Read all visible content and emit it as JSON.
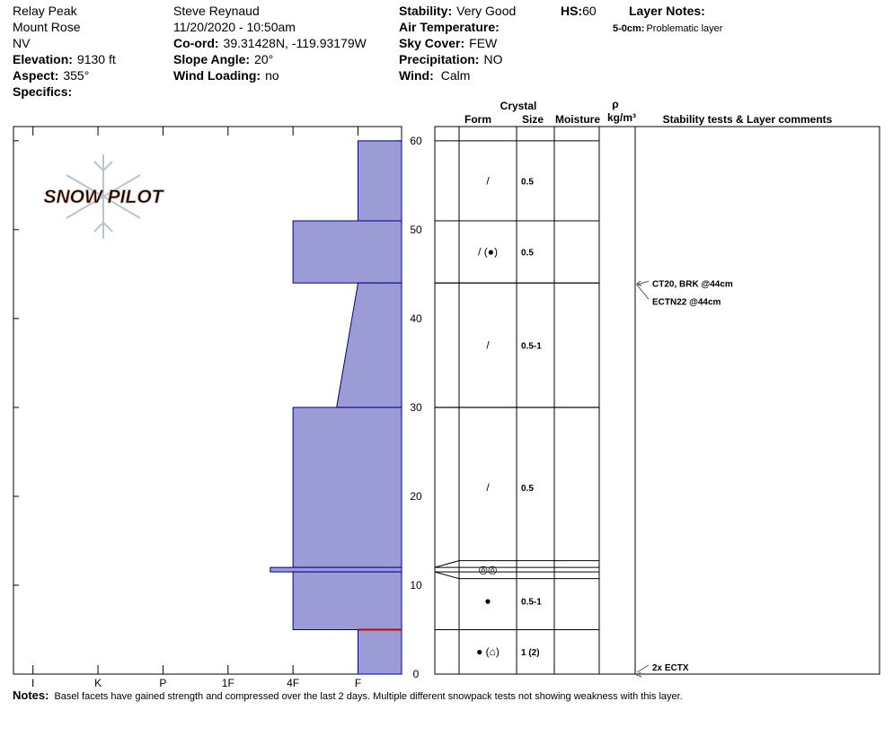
{
  "header": {
    "location": [
      "Relay Peak",
      "Mount Rose",
      "NV"
    ],
    "observer": "Steve Reynaud",
    "datetime": "11/20/2020 - 10:50am",
    "elevation": {
      "label": "Elevation:",
      "value": "9130 ft"
    },
    "aspect": {
      "label": "Aspect:",
      "value": "355°"
    },
    "specifics": {
      "label": "Specifics:"
    },
    "coord": {
      "label": "Co-ord:",
      "value": "39.31428N, -119.93179W"
    },
    "slope_angle": {
      "label": "Slope Angle:",
      "value": "20°"
    },
    "wind_loading": {
      "label": "Wind Loading:",
      "value": "no"
    },
    "stability": {
      "label": "Stability:",
      "value": "Very Good"
    },
    "air_temperature": {
      "label": "Air Temperature:"
    },
    "sky_cover": {
      "label": "Sky Cover:",
      "value": "FEW"
    },
    "precipitation": {
      "label": "Precipitation:",
      "value": "NO"
    },
    "wind": {
      "label": "Wind:",
      "value": "Calm"
    },
    "hs": {
      "label": "HS:",
      "value": 60
    },
    "layer_notes": {
      "title": "Layer Notes:",
      "items": [
        {
          "label": "5-0cm:",
          "text": "Problematic layer"
        }
      ]
    }
  },
  "logo": "SNOW PILOT",
  "chart_data": {
    "type": "snow_profile",
    "ylim": [
      0,
      61.6
    ],
    "yticks": [
      0,
      10,
      20,
      30,
      40,
      50,
      60
    ],
    "xlim": [
      -0.3,
      5.67
    ],
    "xticks": [
      {
        "value": 0,
        "label": "I"
      },
      {
        "value": 1,
        "label": "K"
      },
      {
        "value": 2,
        "label": "P"
      },
      {
        "value": 3,
        "label": "1F"
      },
      {
        "value": 4,
        "label": "4F"
      },
      {
        "value": 5,
        "label": "F"
      }
    ],
    "color": "#9b9bd6",
    "problem_color": "#cc0000",
    "table_header": {
      "crystal": "Crystal",
      "form": "Form",
      "size": "Size",
      "moisture": "Moisture",
      "density_symbol": "ρ",
      "density_unit": "kg/m³",
      "comments": "Stability tests & Layer comments"
    },
    "layers": [
      {
        "top": 60,
        "bottom": 51,
        "hardness_top": 5,
        "hardness_bottom": 5,
        "grain_form": "/",
        "grain_size": "0.5"
      },
      {
        "top": 51,
        "bottom": 44,
        "hardness_top": 4,
        "hardness_bottom": 4,
        "grain_form": "/ (●)",
        "grain_size": "0.5"
      },
      {
        "top": 44,
        "bottom": 30,
        "hardness_top": 5,
        "hardness_bottom": 4.67,
        "grain_form": "/",
        "grain_size": "0.5-1"
      },
      {
        "top": 30,
        "bottom": 12,
        "hardness_top": 4,
        "hardness_bottom": 4,
        "grain_form": "/",
        "grain_size": "0.5"
      },
      {
        "top": 12,
        "bottom": 11.5,
        "hardness_top": 3.65,
        "hardness_bottom": 3.65,
        "grain_form": "◎◎"
      },
      {
        "top": 11.5,
        "bottom": 5,
        "hardness_top": 4,
        "hardness_bottom": 4,
        "grain_form": "●",
        "grain_size": "0.5-1"
      },
      {
        "top": 5,
        "bottom": 0,
        "hardness_top": 5,
        "hardness_bottom": 5,
        "grain_form": "● (⌂)",
        "grain_size": "1 (2)",
        "problematic": true
      }
    ],
    "tests": [
      {
        "label": "CT20, BRK @44cm",
        "depth": 44
      },
      {
        "label": "ECTN22 @44cm",
        "depth": 44
      },
      {
        "label": "2x ECTX",
        "depth": 0
      }
    ]
  },
  "notes": {
    "label": "Notes:",
    "text": "Basel facets have gained strength and compressed over the last 2 days.  Multiple different snowpack tests not showing weakness with this layer."
  }
}
